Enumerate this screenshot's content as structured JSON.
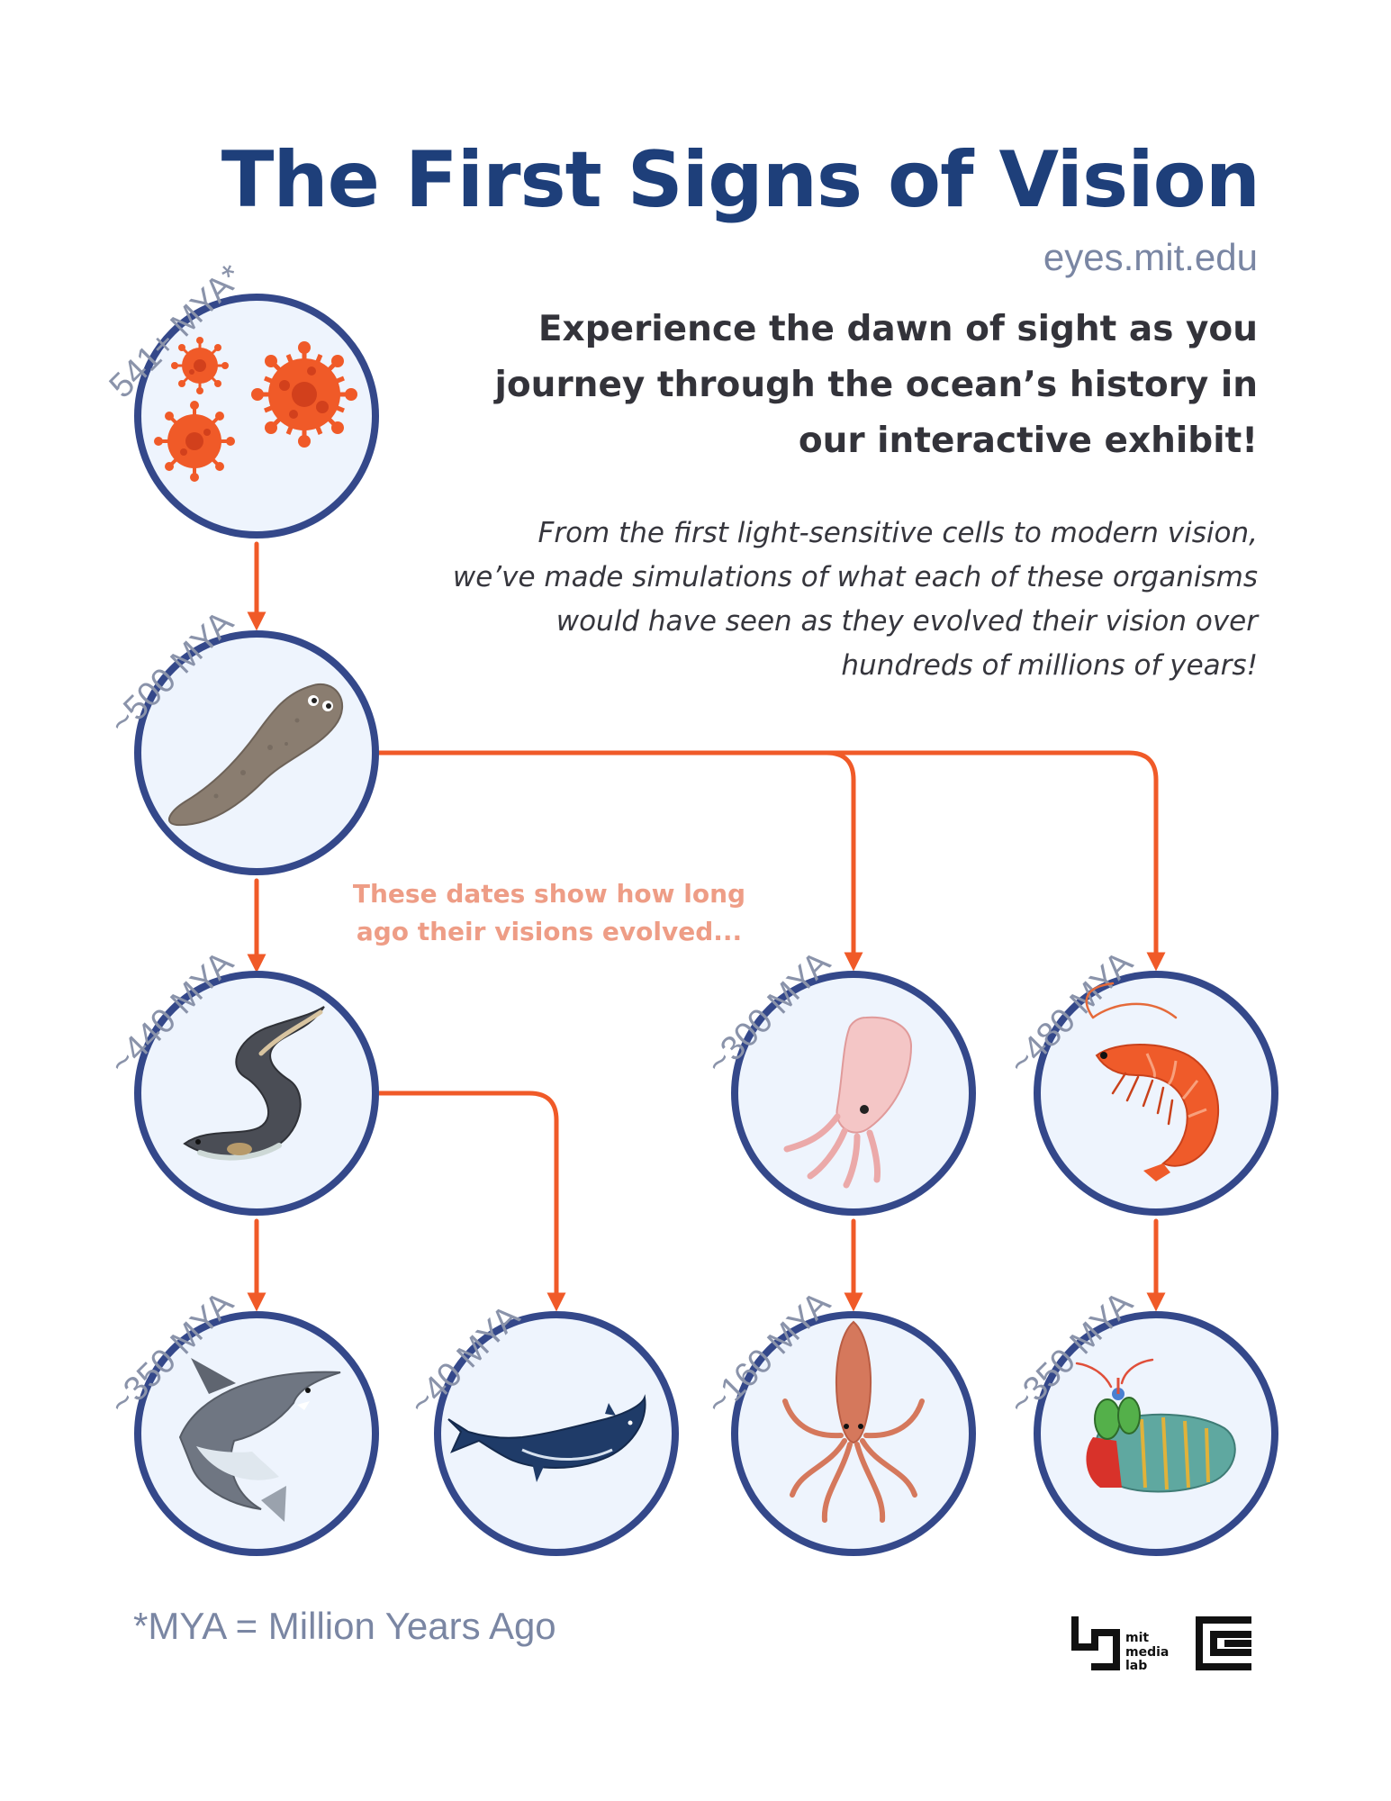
{
  "header": {
    "title": "The First Signs of Vision",
    "url": "eyes.mit.edu",
    "tagline": "Experience the dawn of sight as you journey through the ocean’s history in our interactive exhibit!",
    "description": "From the first light-sensitive cells to modern vision, we’ve made simulations of what each of these organisms would have seen as they evolved their vision over hundreds of millions of years!"
  },
  "note": "These dates show how long ago their visions evolved...",
  "footnote": "*MYA = Million Years Ago",
  "nodes": {
    "microbes": {
      "date": "541+ MYA*",
      "icon": "microbe-cluster-icon"
    },
    "flatworm": {
      "date": "~500 MYA",
      "icon": "flatworm-icon"
    },
    "eel": {
      "date": "~440 MYA",
      "icon": "eel-icon"
    },
    "cuttlefish": {
      "date": "~300 MYA",
      "icon": "cuttlefish-icon"
    },
    "shrimp": {
      "date": "~480 MYA",
      "icon": "shrimp-icon"
    },
    "shark": {
      "date": "~350 MYA",
      "icon": "shark-icon"
    },
    "whale": {
      "date": "~40 MYA",
      "icon": "whale-icon"
    },
    "squid": {
      "date": "~160 MYA",
      "icon": "squid-icon"
    },
    "mantis_shrimp": {
      "date": "~350 MYA",
      "icon": "mantis-shrimp-icon"
    }
  },
  "logos": {
    "media_lab_text": [
      "mit",
      "media",
      "lab"
    ]
  },
  "colors": {
    "title": "#1e3f7a",
    "circle_stroke": "#34488a",
    "circle_fill": "#eef4fd",
    "arrow": "#f05a28",
    "note": "#ee9d86"
  }
}
